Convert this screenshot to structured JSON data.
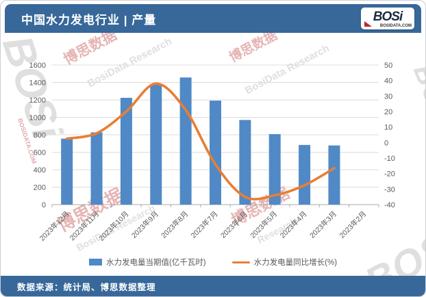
{
  "header": {
    "title": "中国水力发电行业 | 产量",
    "logo": {
      "text": "BOSi",
      "subtext": "BOSIDATA.COM"
    }
  },
  "footer": {
    "source": "数据来源：统计局、博思数据整理"
  },
  "colors": {
    "brand_blue": "#376899",
    "bar_blue": "#5089C6",
    "line_orange": "#E87E33",
    "axis_text": "#595959",
    "gridline": "#DCDCDC",
    "logo_red": "#C0272D"
  },
  "watermarks": [
    "BOSi",
    "BOSIDATA.COM",
    "博思数据",
    "BosiData Research",
    "博思数据",
    "BosiData Research",
    "博思数据",
    "BosiData Research",
    "博思数据",
    "Research",
    "BOSi",
    "BOSi"
  ],
  "chart_data": {
    "type": "bar",
    "subtype": "combo-bar-line-dual-axis",
    "title": "中国水力发电行业 | 产量",
    "categories": [
      "2023年12月",
      "2023年11月",
      "2023年10月",
      "2023年9月",
      "2023年8月",
      "2023年7月",
      "2023年6月",
      "2023年5月",
      "2023年4月",
      "2023年3月",
      "2023年2月"
    ],
    "series": [
      {
        "name": "水力发电量当期值(亿千瓦时)",
        "type": "bar",
        "axis": "left",
        "color": "#5089C6",
        "values": [
          756,
          828,
          1224,
          1380,
          1457,
          1192,
          970,
          808,
          684,
          678,
          null
        ]
      },
      {
        "name": "水力发电量同比增长(%)",
        "type": "line",
        "axis": "right",
        "color": "#E87E33",
        "values": [
          2.5,
          6,
          20,
          38,
          21,
          -14,
          -35,
          -34,
          -27.5,
          -16.5,
          null
        ]
      }
    ],
    "left_axis": {
      "min": 0,
      "max": 1600,
      "step": 200,
      "ticks": [
        0,
        200,
        400,
        600,
        800,
        1000,
        1200,
        1400,
        1600
      ]
    },
    "right_axis": {
      "min": -40,
      "max": 50,
      "step": 10,
      "ticks": [
        50,
        40,
        30,
        20,
        10,
        0,
        -10,
        -20,
        -30,
        -40
      ]
    },
    "grid": true,
    "legend_position": "bottom",
    "xlabel": "",
    "ylabel_left": "亿千瓦时",
    "ylabel_right": "%"
  }
}
